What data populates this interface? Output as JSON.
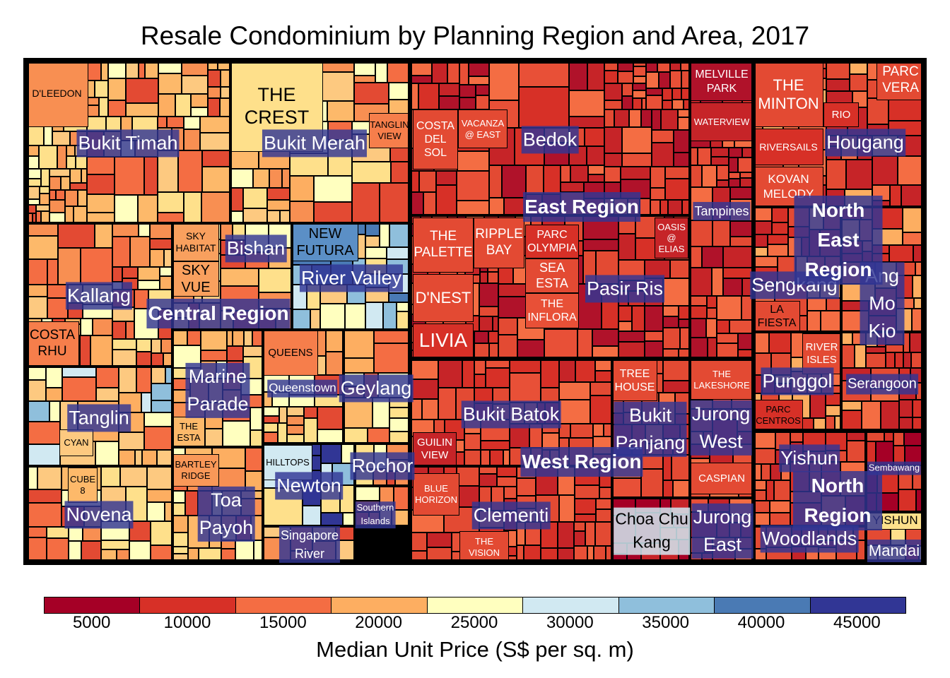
{
  "chart_data": {
    "type": "treemap",
    "title": "Resale Condominium by Planning Region and Area, 2017",
    "legend": {
      "title": "Median Unit Price (S$ per sq. m)",
      "ticks": [
        "5000",
        "10000",
        "15000",
        "20000",
        "25000",
        "30000",
        "35000",
        "40000",
        "45000"
      ],
      "colors": [
        "#a50026",
        "#d73027",
        "#f46d43",
        "#fdae61",
        "#ffffbf",
        "#d1e9f2",
        "#8fbfdc",
        "#4a7ab4",
        "#313695"
      ],
      "placement": "bottom"
    },
    "regions": [
      {
        "name": "Central Region",
        "areas": [
          "Bukit Timah",
          "Bukit Merah",
          "Kallang",
          "Bishan",
          "River Valley",
          "Tanglin",
          "Marine Parade",
          "Queenstown",
          "Geylang",
          "Novena",
          "Toa Payoh",
          "Newton",
          "Rochor",
          "Southern Islands",
          "Singapore River"
        ]
      },
      {
        "name": "East Region",
        "areas": [
          "Bedok",
          "Pasir Ris",
          "Tampines"
        ]
      },
      {
        "name": "West Region",
        "areas": [
          "Bukit Batok",
          "Clementi",
          "Bukit Panjang",
          "Jurong West",
          "Choa Chu Kang",
          "Jurong East"
        ]
      },
      {
        "name": "North East Region",
        "areas": [
          "Hougang",
          "Sengkang",
          "Ang Mo Kio",
          "Punggol",
          "Serangoon"
        ]
      },
      {
        "name": "North Region",
        "areas": [
          "Yishun",
          "Sembawang",
          "Woodlands",
          "Mandai"
        ]
      }
    ],
    "area_labels": {
      "Bukit Timah": "Bukit Timah",
      "Bukit Merah": "Bukit Merah",
      "Kallang": "Kallang",
      "Bishan": "Bishan",
      "River Valley": "River Valley",
      "Tanglin": "Tanglin",
      "Marine Parade": "Marine\nParade",
      "Queenstown": "Queenstown",
      "Geylang": "Geylang",
      "Novena": "Novena",
      "Toa Payoh": "Toa\nPayoh",
      "Newton": "Newton",
      "Rochor": "Rochor",
      "Southern Islands": "Southern\nIslands",
      "Singapore River": "Singapore\nRiver",
      "Bedok": "Bedok",
      "Pasir Ris": "Pasir Ris",
      "Tampines": "Tampines",
      "Bukit Batok": "Bukit Batok",
      "Clementi": "Clementi",
      "Bukit Panjang": "Bukit\nPanjang",
      "Jurong West": "Jurong\nWest",
      "Choa Chu Kang": "Choa Chu\nKang",
      "Jurong East": "Jurong\nEast",
      "Hougang": "Hougang",
      "Sengkang": "Sengkang",
      "Ang Mo Kio": "Ang Mo\nKio",
      "Punggol": "Punggol",
      "Serangoon": "Serangoon",
      "Yishun": "Yishun",
      "Sembawang": "Sembawang",
      "Woodlands": "Woodlands",
      "Mandai": "Mandai"
    },
    "region_labels": {
      "Central Region": "Central Region",
      "East Region": "East Region",
      "West Region": "West Region",
      "North East Region": "North East\nRegion",
      "North Region": "North Region"
    },
    "projects": [
      {
        "name": "D'LEEDON",
        "area": "Bukit Timah",
        "fill": "#f88f52"
      },
      {
        "name": "THE\nCREST",
        "area": "Bukit Merah",
        "fill": "#fee08b"
      },
      {
        "name": "TANGLIN\nVIEW",
        "area": "Bukit Merah",
        "fill": "#f67e4b"
      },
      {
        "name": "SKY\nHABITAT",
        "area": "Bishan",
        "fill": "#f9a05e"
      },
      {
        "name": "SKY\nVUE",
        "area": "Bishan",
        "fill": "#f9a05e"
      },
      {
        "name": "NEW\nFUTURA",
        "area": "River Valley",
        "fill": "#5b8fc6"
      },
      {
        "name": "COSTA\nRHU",
        "area": "Kallang",
        "fill": "#f67e4b"
      },
      {
        "name": "QUEENS",
        "area": "Queenstown",
        "fill": "#f67e4b"
      },
      {
        "name": "THE\nESTA",
        "area": "Marine Parade",
        "fill": "#fdb96a"
      },
      {
        "name": "CYAN",
        "area": "Tanglin",
        "fill": "#fdc980"
      },
      {
        "name": "CUBE\n8",
        "area": "Novena",
        "fill": "#fdb96a"
      },
      {
        "name": "BARTLEY\nRIDGE",
        "area": "Toa Payoh",
        "fill": "#f99858"
      },
      {
        "name": "HILLTOPS",
        "area": "Newton",
        "fill": "#d1e9f2"
      },
      {
        "name": "COSTA\nDEL\nSOL",
        "area": "Bedok",
        "fill": "#e34a33"
      },
      {
        "name": "VACANZA\n@ EAST",
        "area": "Bedok",
        "fill": "#e34a33"
      },
      {
        "name": "THE\nPALETTE",
        "area": "Pasir Ris",
        "fill": "#e34a33"
      },
      {
        "name": "RIPPLE\nBAY",
        "area": "Pasir Ris",
        "fill": "#e34a33"
      },
      {
        "name": "PARC\nOLYMPIA",
        "area": "Pasir Ris",
        "fill": "#d73027"
      },
      {
        "name": "OASIS\n@\nELIAS",
        "area": "Pasir Ris",
        "fill": "#c62428"
      },
      {
        "name": "SEA\nESTA",
        "area": "Pasir Ris",
        "fill": "#e34a33"
      },
      {
        "name": "THE\nINFLORA",
        "area": "Pasir Ris",
        "fill": "#e85037"
      },
      {
        "name": "D'NEST",
        "area": "Pasir Ris",
        "fill": "#e34a33"
      },
      {
        "name": "LIVIA",
        "area": "Pasir Ris",
        "fill": "#d73027"
      },
      {
        "name": "MELVILLE\nPARK",
        "area": "Tampines",
        "fill": "#b0122a"
      },
      {
        "name": "WATERVIEW",
        "area": "Tampines",
        "fill": "#c62428"
      },
      {
        "name": "THE\nMINTON",
        "area": "Hougang",
        "fill": "#e34a33"
      },
      {
        "name": "RIO",
        "area": "Hougang",
        "fill": "#d73027"
      },
      {
        "name": "PARC\nVERA",
        "area": "Hougang",
        "fill": "#e34a33"
      },
      {
        "name": "RIVERSAILS",
        "area": "Hougang",
        "fill": "#d73027"
      },
      {
        "name": "KOVAN\nMELODY",
        "area": "Hougang",
        "fill": "#e34a33"
      },
      {
        "name": "LA\nFIESTA",
        "area": "Sengkang",
        "fill": "#e34a33"
      },
      {
        "name": "RIVER\nISLES",
        "area": "Punggol",
        "fill": "#e34a33"
      },
      {
        "name": "PARC\nCENTROS",
        "area": "Punggol",
        "fill": "#d73027"
      },
      {
        "name": "TREE\nHOUSE",
        "area": "Bukit Panjang",
        "fill": "#e34a33"
      },
      {
        "name": "THE\nLAKESHORE",
        "area": "Jurong West",
        "fill": "#e34a33"
      },
      {
        "name": "CASPIAN",
        "area": "Jurong West",
        "fill": "#e34a33"
      },
      {
        "name": "GUILIN\nVIEW",
        "area": "Bukit Batok",
        "fill": "#c62428"
      },
      {
        "name": "BLUE\nHORIZON",
        "area": "Clementi",
        "fill": "#e34a33"
      },
      {
        "name": "THE\nVISION",
        "area": "Clementi",
        "fill": "#e34a33"
      },
      {
        "name": "YISHUN",
        "area": "Mandai",
        "fill": "#fee08b"
      }
    ]
  }
}
